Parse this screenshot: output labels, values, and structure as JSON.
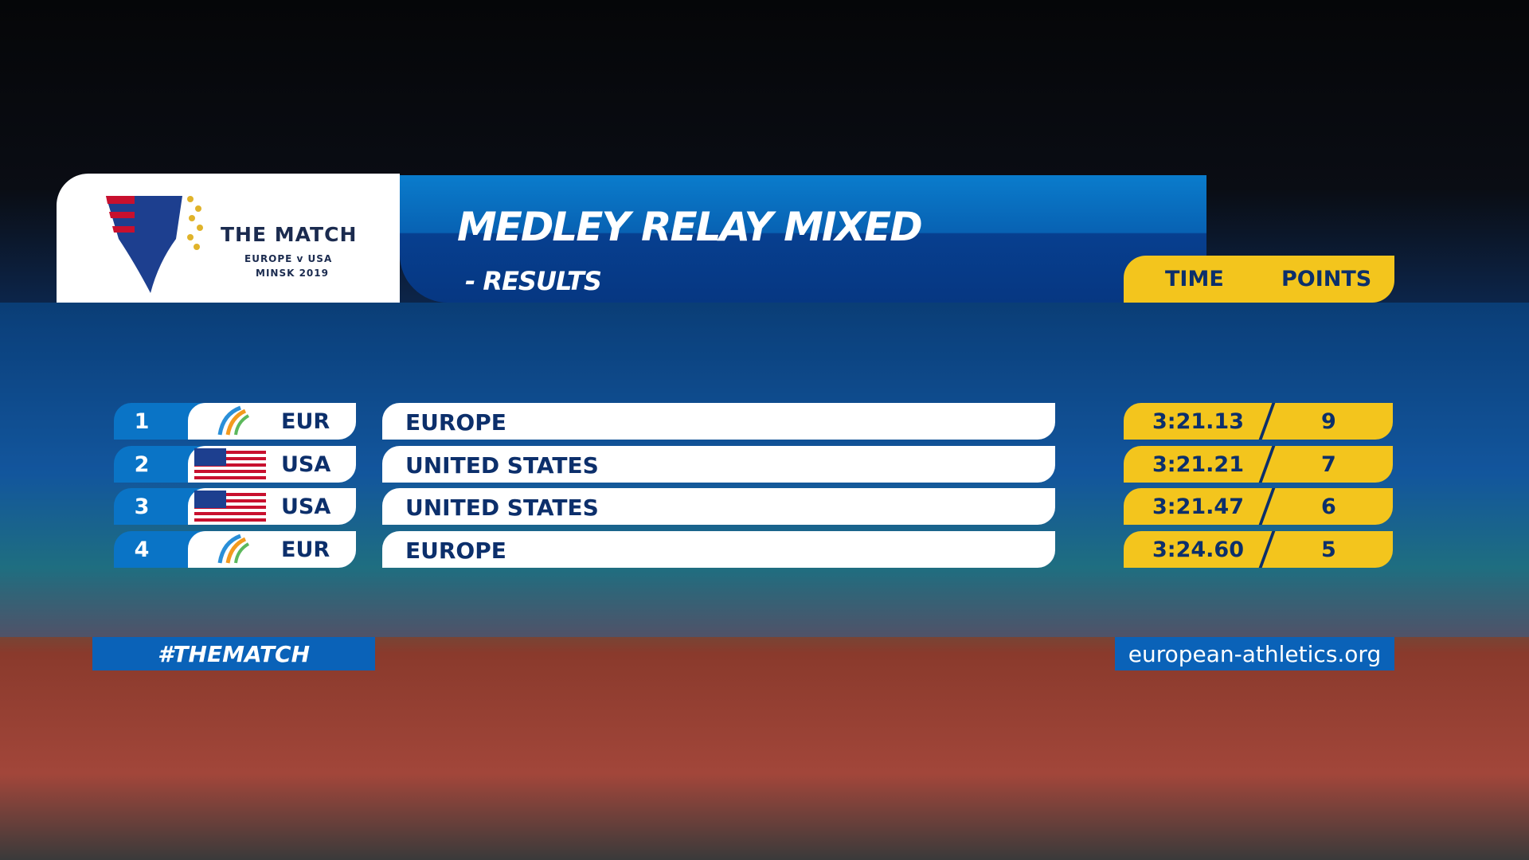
{
  "logo": {
    "title": "THE MATCH",
    "line1": "EUROPE v USA",
    "line2": "MINSK 2019"
  },
  "header": {
    "title": "MEDLEY RELAY MIXED",
    "subtitle": "- RESULTS"
  },
  "columns": {
    "time": "TIME",
    "points": "POINTS"
  },
  "rows": [
    {
      "rank": 1,
      "code": "EUR",
      "name": "EUROPE",
      "time": "3:21.13",
      "points": 9
    },
    {
      "rank": 2,
      "code": "USA",
      "name": "UNITED STATES",
      "time": "3:21.21",
      "points": 7
    },
    {
      "rank": 3,
      "code": "USA",
      "name": "UNITED STATES",
      "time": "3:21.47",
      "points": 6
    },
    {
      "rank": 4,
      "code": "EUR",
      "name": "EUROPE",
      "time": "3:24.60",
      "points": 5
    }
  ],
  "footer": {
    "hashtag": "#THEMATCH",
    "website": "european-athletics.org"
  }
}
